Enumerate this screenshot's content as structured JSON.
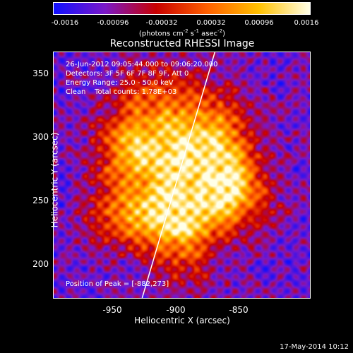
{
  "chart_data": {
    "type": "heatmap",
    "title": "Reconstructed RHESSI Image",
    "xlabel": "Heliocentric X (arcsec)",
    "ylabel": "Heliocentric Y (arcsec)",
    "xlim": [
      -997,
      -803
    ],
    "ylim": [
      174,
      370
    ],
    "x_ticks": [
      -950,
      -900,
      -850
    ],
    "y_ticks": [
      200,
      250,
      300,
      350
    ],
    "colorbar": {
      "range": [
        -0.0016,
        0.0016
      ],
      "ticks": [
        "-0.0016",
        "-0.00096",
        "-0.00032",
        "0.00032",
        "0.00096",
        "0.0016"
      ],
      "unit_parts": [
        "(photons cm",
        "-2",
        " s",
        "-1",
        " asec",
        "-2",
        ")"
      ],
      "colors": [
        "#1010ff",
        "#7a18c8",
        "#c80000",
        "#ff6000",
        "#ffc000",
        "#ffffe8"
      ]
    },
    "annotations": {
      "time_range": "26-Jun-2012 09:05:44.000 to 09:06:20.000",
      "detectors": "Detectors: 3F 5F 6F 7F 8F 9F, Att 0",
      "energy": "Energy Range: 25.0 - 50.0 keV",
      "algorithm": "Clean",
      "total_counts": "Total counts: 1.78E+03",
      "peak_label": "Position of Peak = [-882,273]"
    },
    "peak_position": [
      -882,
      273
    ],
    "limb_line_points": [
      [
        -930,
        174
      ],
      [
        -875,
        370
      ]
    ],
    "footer_date": "17-May-2014 10:12"
  }
}
